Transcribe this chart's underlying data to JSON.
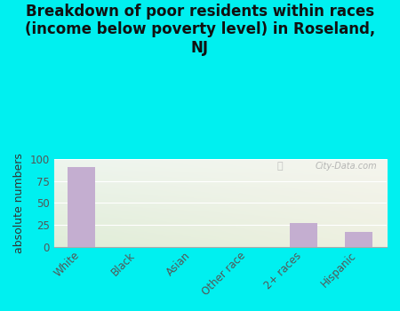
{
  "title": "Breakdown of poor residents within races\n(income below poverty level) in Roseland,\nNJ",
  "categories": [
    "White",
    "Black",
    "Asian",
    "Other race",
    "2+ races",
    "Hispanic"
  ],
  "values": [
    91,
    0,
    0,
    0,
    27,
    17
  ],
  "bar_color": "#c4aed0",
  "ylabel": "absolute numbers",
  "ylim": [
    0,
    100
  ],
  "yticks": [
    0,
    25,
    50,
    75,
    100
  ],
  "background_color": "#00f0f0",
  "plot_bg_top_left": "#e8f0e0",
  "plot_bg_top_right": "#f5f5f0",
  "plot_bg_bottom_left": "#d8ead8",
  "plot_bg_bottom_right": "#eeeee8",
  "title_fontsize": 12,
  "axis_label_fontsize": 9,
  "tick_fontsize": 8.5,
  "watermark": "City-Data.com"
}
